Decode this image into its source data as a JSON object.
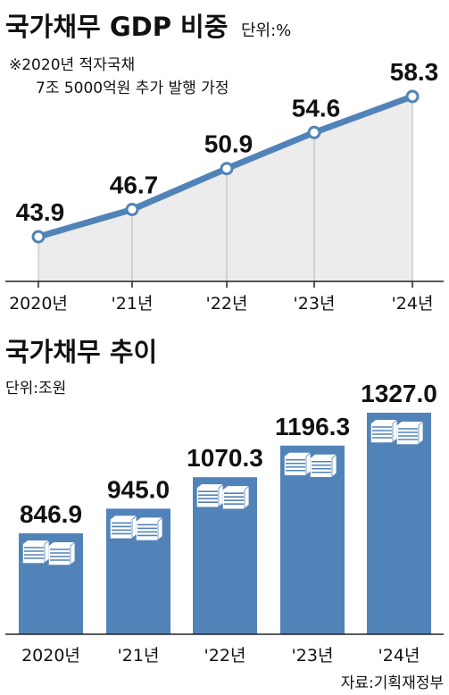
{
  "charts": {
    "ratio": {
      "title": "국가채무 GDP 비중",
      "unit": "단위:%",
      "note_line1": "※2020년 적자국채",
      "note_line2": "7조 5000억원 추가 발행 가정"
    },
    "trend": {
      "title": "국가채무 추이",
      "unit": "단위:조원"
    }
  },
  "source": "자료:기획재정부",
  "colors": {
    "accent": "#5283B8",
    "area_fill": "#ECECEC",
    "bar": "#5283B8",
    "book_pages": "#FFFFFF"
  },
  "chart_data": [
    {
      "type": "line",
      "title": "국가채무 GDP 비중",
      "unit": "%",
      "categories": [
        "2020년",
        "'21년",
        "'22년",
        "'23년",
        "'24년"
      ],
      "series": [
        {
          "values": [
            43.9,
            46.7,
            50.9,
            54.6,
            58.3
          ]
        }
      ],
      "value_labels": [
        "43.9",
        "46.7",
        "50.9",
        "54.6",
        "58.3"
      ],
      "grid": false
    },
    {
      "type": "bar",
      "title": "국가채무 추이",
      "unit": "조원",
      "categories": [
        "2020년",
        "'21년",
        "'22년",
        "'23년",
        "'24년"
      ],
      "values": [
        846.9,
        945.0,
        1070.3,
        1196.3,
        1327.0
      ],
      "value_labels": [
        "846.9",
        "945.0",
        "1070.3",
        "1196.3",
        "1327.0"
      ],
      "grid": false
    }
  ]
}
